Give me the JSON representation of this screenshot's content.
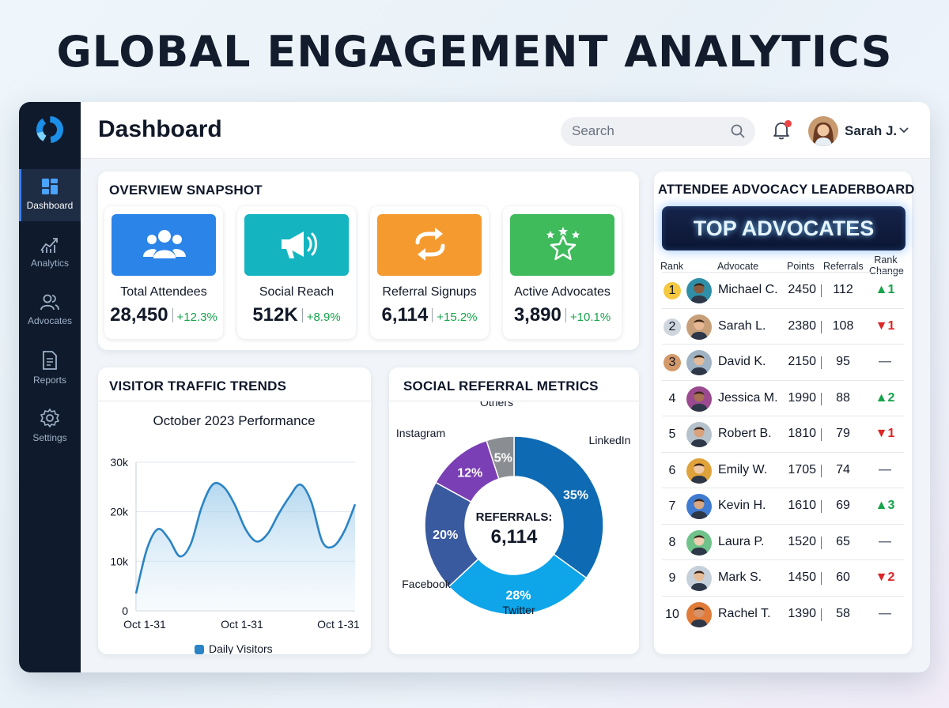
{
  "page": {
    "title": "GLOBAL ENGAGEMENT ANALYTICS"
  },
  "sidebar": {
    "logo_icon": "donut-logo-icon",
    "items": [
      {
        "label": "Dashboard",
        "icon": "dashboard-icon",
        "active": true
      },
      {
        "label": "Analytics",
        "icon": "analytics-icon",
        "active": false
      },
      {
        "label": "Advocates",
        "icon": "users-icon",
        "active": false
      },
      {
        "label": "Reports",
        "icon": "document-icon",
        "active": false
      },
      {
        "label": "Settings",
        "icon": "gear-icon",
        "active": false
      }
    ]
  },
  "header": {
    "title": "Dashboard",
    "search_placeholder": "Search",
    "notification_icon": "bell-icon",
    "user_name": "Sarah J."
  },
  "overview": {
    "title": "OVERVIEW SNAPSHOT",
    "kpis": [
      {
        "label": "Total Attendees",
        "value": "28,450",
        "change": "+12.3%",
        "icon": "users-icon",
        "color": "#2b84e8"
      },
      {
        "label": "Social Reach",
        "value": "512K",
        "change": "+8.9%",
        "icon": "megaphone-icon",
        "color": "#14b5c0"
      },
      {
        "label": "Referral Signups",
        "value": "6,114",
        "change": "+15.2%",
        "icon": "swap-arrows-icon",
        "color": "#f59a2f"
      },
      {
        "label": "Active Advocates",
        "value": "3,890",
        "change": "+10.1%",
        "icon": "stars-icon",
        "color": "#3fbb5c"
      }
    ]
  },
  "traffic": {
    "title": "VISITOR TRAFFIC TRENDS",
    "chart_data": {
      "type": "area",
      "title": "October 2023 Performance",
      "x_tick_labels": [
        "Oct 1-31",
        "Oct 1-31",
        "Oct 1-31"
      ],
      "y_tick_labels": [
        "30k",
        "20k",
        "10k",
        "0"
      ],
      "ylim": [
        0,
        30000
      ],
      "series": [
        {
          "name": "Daily Visitors",
          "color": "#2a84c6",
          "values": [
            3500,
            12500,
            16500,
            14500,
            11000,
            13500,
            21000,
            25500,
            25000,
            21500,
            16500,
            14000,
            15500,
            19500,
            23000,
            25500,
            22000,
            14000,
            13000,
            16000,
            21500
          ]
        }
      ],
      "grid": true,
      "legend_position": "bottom"
    }
  },
  "social": {
    "title": "SOCIAL REFERRAL METRICS",
    "chart_data": {
      "type": "pie",
      "center_label": "REFERRALS:",
      "center_value": "6,114",
      "slices": [
        {
          "label": "LinkedIn",
          "value": 35,
          "display": "35%",
          "color": "#0e6bb3"
        },
        {
          "label": "Twitter",
          "value": 28,
          "display": "28%",
          "color": "#0ea5e9"
        },
        {
          "label": "Facebook",
          "value": 20,
          "display": "20%",
          "color": "#3a5aa0"
        },
        {
          "label": "Instagram",
          "value": 12,
          "display": "12%",
          "color": "#7b3fb5"
        },
        {
          "label": "Others",
          "value": 5,
          "display": "5%",
          "color": "#8a8d92"
        }
      ]
    }
  },
  "leaderboard": {
    "title": "ATTENDEE ADVOCACY LEADERBOARD",
    "banner": "TOP ADVOCATES",
    "columns": {
      "rank": "Rank",
      "advocate": "Advocate",
      "points": "Points",
      "referrals": "Referrals",
      "change": "Rank Change"
    },
    "medal_colors": [
      "#f5c842",
      "#cfd6de",
      "#d4996a"
    ],
    "rows": [
      {
        "rank": "1",
        "name": "Michael C.",
        "points": "2450",
        "referrals": "112",
        "change": "▲1",
        "dir": "up",
        "skin": "#8a5a3c",
        "bg": "#2f8fa8"
      },
      {
        "rank": "2",
        "name": "Sarah L.",
        "points": "2380",
        "referrals": "108",
        "change": "▼1",
        "dir": "down",
        "skin": "#e8b894",
        "bg": "#c7a07a"
      },
      {
        "rank": "3",
        "name": "David K.",
        "points": "2150",
        "referrals": "95",
        "change": "—",
        "dir": "same",
        "skin": "#e3bb98",
        "bg": "#9fb3c4"
      },
      {
        "rank": "4",
        "name": "Jessica M.",
        "points": "1990",
        "referrals": "88",
        "change": "▲2",
        "dir": "up",
        "skin": "#a86f52",
        "bg": "#9b4a8f"
      },
      {
        "rank": "5",
        "name": "Robert B.",
        "points": "1810",
        "referrals": "79",
        "change": "▼1",
        "dir": "down",
        "skin": "#d9a27c",
        "bg": "#b5c2cc"
      },
      {
        "rank": "6",
        "name": "Emily W.",
        "points": "1705",
        "referrals": "74",
        "change": "—",
        "dir": "same",
        "skin": "#f0c9a8",
        "bg": "#e0a23a"
      },
      {
        "rank": "7",
        "name": "Kevin H.",
        "points": "1610",
        "referrals": "69",
        "change": "▲3",
        "dir": "up",
        "skin": "#d8a882",
        "bg": "#3f7bd1"
      },
      {
        "rank": "8",
        "name": "Laura P.",
        "points": "1520",
        "referrals": "65",
        "change": "—",
        "dir": "same",
        "skin": "#f0cdb0",
        "bg": "#6ec28a"
      },
      {
        "rank": "9",
        "name": "Mark S.",
        "points": "1450",
        "referrals": "60",
        "change": "▼2",
        "dir": "down",
        "skin": "#e6bc98",
        "bg": "#c6d0da"
      },
      {
        "rank": "10",
        "name": "Rachel T.",
        "points": "1390",
        "referrals": "58",
        "change": "—",
        "dir": "same",
        "skin": "#d7926a",
        "bg": "#e07b3a"
      }
    ]
  }
}
